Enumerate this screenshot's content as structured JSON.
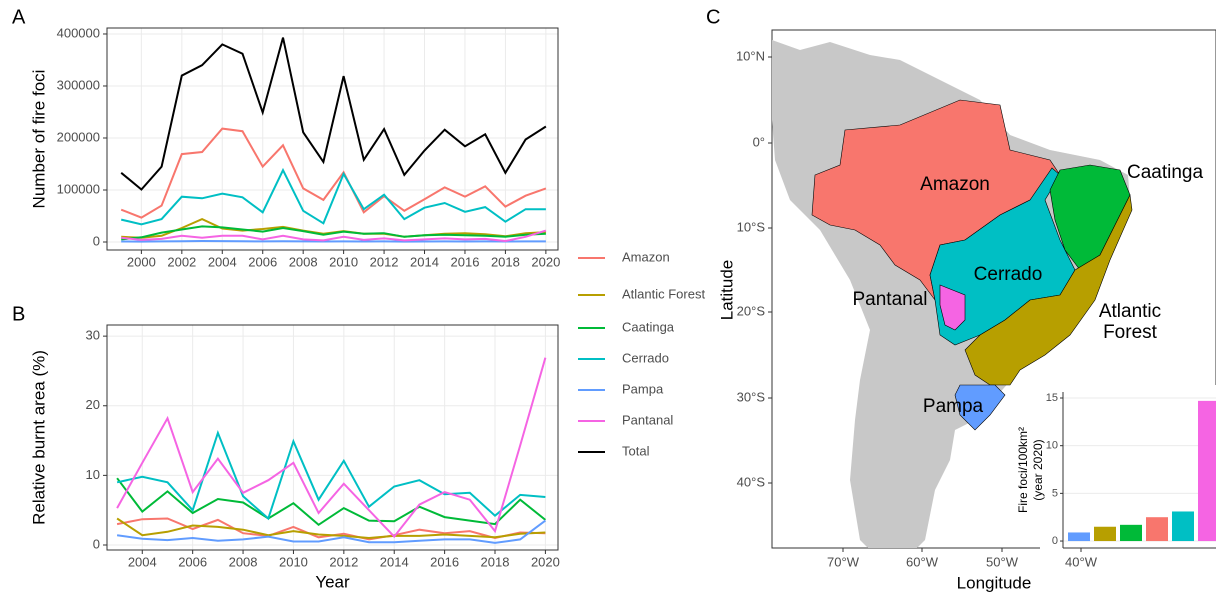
{
  "chart_data": [
    {
      "type": "line",
      "panel_label": "A",
      "ylabel": "Number of fire foci",
      "x": [
        1999,
        2000,
        2001,
        2002,
        2003,
        2004,
        2005,
        2006,
        2007,
        2008,
        2009,
        2010,
        2011,
        2012,
        2013,
        2014,
        2015,
        2016,
        2017,
        2018,
        2019,
        2020
      ],
      "xlim": [
        1998.3,
        2020.6
      ],
      "xticks": [
        2000,
        2002,
        2004,
        2006,
        2008,
        2010,
        2012,
        2014,
        2016,
        2018,
        2020
      ],
      "ylim": [
        -15400,
        411500
      ],
      "yticks": [
        0,
        100000,
        200000,
        300000,
        400000
      ],
      "grid": true,
      "series": [
        {
          "name": "Amazon",
          "color": "#f8766d",
          "values": [
            62000,
            47000,
            70000,
            169000,
            173000,
            218000,
            213000,
            145000,
            186000,
            103000,
            81000,
            134000,
            57000,
            88000,
            60000,
            82000,
            105000,
            87000,
            107000,
            68000,
            89000,
            103000
          ]
        },
        {
          "name": "Atlantic Forest",
          "color": "#b79f00",
          "values": [
            10000,
            8000,
            12000,
            27000,
            44000,
            26000,
            22000,
            25000,
            29000,
            22000,
            16000,
            21000,
            16000,
            16000,
            10000,
            13000,
            16000,
            17000,
            15000,
            11000,
            17000,
            19000
          ]
        },
        {
          "name": "Caatinga",
          "color": "#00ba38",
          "values": [
            5000,
            9000,
            18000,
            24000,
            30000,
            28000,
            24000,
            20000,
            27000,
            21000,
            14000,
            20000,
            16000,
            17000,
            10000,
            13000,
            14000,
            13000,
            12000,
            10000,
            14000,
            16000
          ]
        },
        {
          "name": "Cerrado",
          "color": "#00bfc4",
          "values": [
            43000,
            34000,
            44000,
            87000,
            84000,
            93000,
            86000,
            57000,
            138000,
            60000,
            36000,
            131000,
            63000,
            91000,
            44000,
            66000,
            75000,
            58000,
            67000,
            39000,
            63000,
            63000
          ]
        },
        {
          "name": "Pampa",
          "color": "#619cff",
          "values": [
            1000,
            800,
            1200,
            1500,
            2000,
            1800,
            1500,
            1200,
            1500,
            1200,
            1000,
            1200,
            1000,
            1100,
            800,
            900,
            1200,
            1000,
            1100,
            900,
            1200,
            1100
          ]
        },
        {
          "name": "Pantanal",
          "color": "#f564e3",
          "values": [
            8000,
            4000,
            6000,
            12000,
            8000,
            12000,
            12000,
            5000,
            12000,
            5000,
            3000,
            10000,
            4000,
            7000,
            3000,
            5000,
            7000,
            5000,
            6000,
            2000,
            10000,
            22000
          ]
        },
        {
          "name": "Total",
          "color": "#000000",
          "values": [
            133000,
            101000,
            145000,
            320000,
            340000,
            380000,
            362000,
            249000,
            393000,
            211000,
            154000,
            319000,
            158000,
            217000,
            129000,
            176000,
            216000,
            184000,
            207000,
            133000,
            197000,
            222000
          ]
        }
      ]
    },
    {
      "type": "line",
      "panel_label": "B",
      "xlabel": "Year",
      "ylabel": "Relative burnt area (%)",
      "x": [
        2003,
        2004,
        2005,
        2006,
        2007,
        2008,
        2009,
        2010,
        2011,
        2012,
        2013,
        2014,
        2015,
        2016,
        2017,
        2018,
        2019,
        2020
      ],
      "xlim": [
        2002.6,
        2020.5
      ],
      "xticks": [
        2004,
        2006,
        2008,
        2010,
        2012,
        2014,
        2016,
        2018,
        2020
      ],
      "ylim": [
        -0.72,
        31.6
      ],
      "yticks": [
        0,
        10,
        20,
        30
      ],
      "grid": true,
      "series": [
        {
          "color": "#f8766d",
          "values": [
            3.0,
            3.7,
            3.8,
            2.3,
            3.6,
            1.7,
            1.3,
            2.6,
            1.1,
            1.6,
            0.8,
            1.4,
            2.2,
            1.7,
            2.0,
            1.0,
            1.8,
            1.7
          ]
        },
        {
          "color": "#b79f00",
          "values": [
            3.8,
            1.4,
            1.9,
            2.8,
            2.6,
            2.2,
            1.4,
            2.0,
            1.5,
            1.3,
            1.0,
            1.3,
            1.3,
            1.5,
            1.3,
            1.1,
            1.6,
            1.8
          ]
        },
        {
          "color": "#00ba38",
          "values": [
            9.6,
            4.8,
            7.7,
            4.6,
            6.6,
            6.1,
            3.8,
            6.0,
            2.9,
            5.3,
            3.5,
            3.4,
            5.5,
            4.0,
            3.5,
            3.0,
            6.5,
            3.6
          ]
        },
        {
          "color": "#00bfc4",
          "values": [
            9.0,
            9.8,
            9.0,
            5.0,
            16.1,
            7.0,
            3.8,
            14.9,
            6.5,
            12.1,
            5.5,
            8.4,
            9.3,
            7.3,
            7.5,
            4.2,
            7.2,
            6.9
          ]
        },
        {
          "color": "#619cff",
          "values": [
            1.4,
            0.9,
            0.7,
            1.0,
            0.6,
            0.8,
            1.2,
            0.5,
            0.5,
            1.1,
            0.4,
            0.4,
            0.6,
            0.8,
            0.8,
            0.3,
            0.8,
            3.5
          ]
        },
        {
          "color": "#f564e3",
          "values": [
            5.3,
            11.8,
            18.2,
            7.6,
            12.4,
            7.5,
            9.3,
            11.8,
            4.6,
            8.8,
            5.0,
            1.2,
            5.8,
            7.6,
            6.5,
            2.0,
            14.3,
            26.9
          ]
        }
      ]
    },
    {
      "type": "bar",
      "ylabel": [
        "Fire foci/100km²",
        "(year 2020)"
      ],
      "categories": [
        null,
        null,
        null,
        null,
        null,
        null
      ],
      "values": [
        0.9,
        1.5,
        1.7,
        2.5,
        3.1,
        14.7
      ],
      "colors": [
        "#619cff",
        "#b79f00",
        "#00ba38",
        "#f8766d",
        "#00bfc4",
        "#f564e3"
      ],
      "ylim": [
        -0.73,
        15.63
      ],
      "yticks": [
        0,
        5,
        10,
        15
      ],
      "grid": true
    }
  ],
  "map": {
    "panel_label": "C",
    "xlabel": "Longitude",
    "ylabel": "Latitude",
    "lat_ticks": [
      "10°N",
      "0°",
      "10°S",
      "20°S",
      "30°S",
      "40°S"
    ],
    "lon_ticks": [
      "70°W",
      "60°W",
      "50°W",
      "40°W"
    ],
    "regions": [
      "Amazon",
      "Caatinga",
      "Cerrado",
      "Pantanal",
      "Atlantic Forest",
      "Pampa"
    ]
  }
}
